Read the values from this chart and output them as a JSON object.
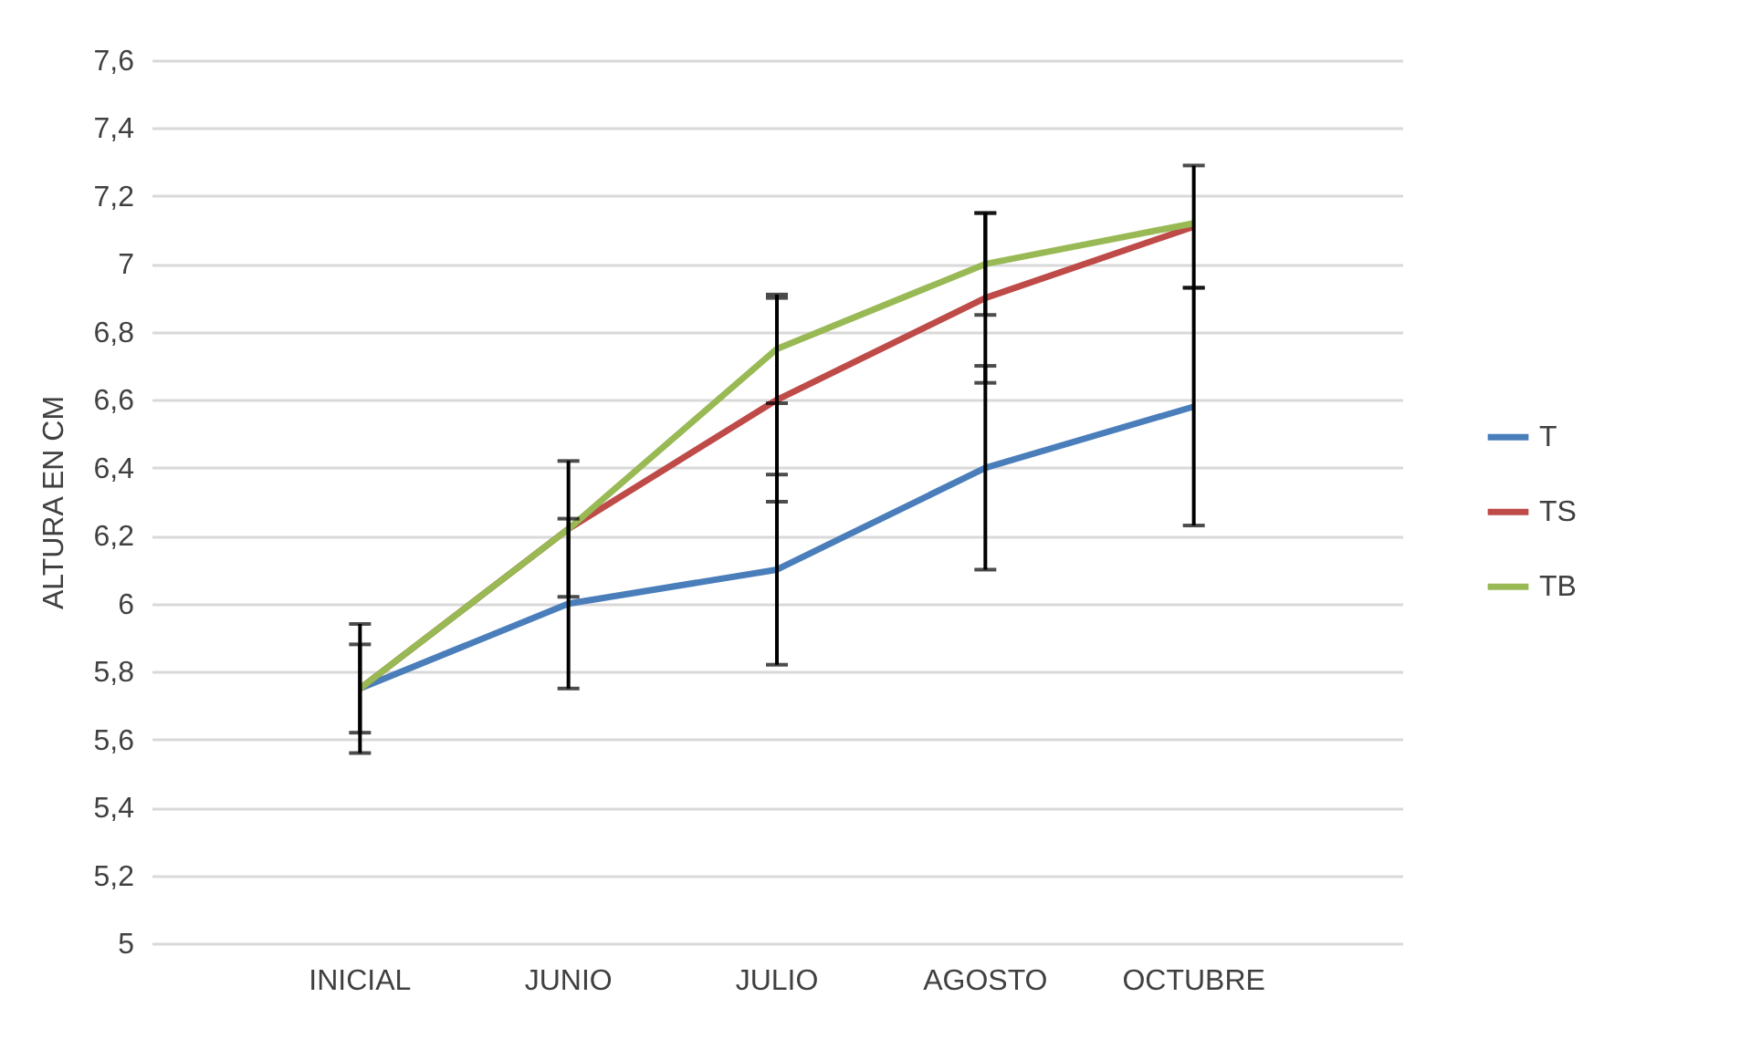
{
  "chart_data": {
    "type": "line",
    "ylabel": "ALTURA EN  CM",
    "categories": [
      "INICIAL",
      "JUNIO",
      "JULIO",
      "AGOSTO",
      "OCTUBRE"
    ],
    "series": [
      {
        "name": "T",
        "color": "#4a7ebb",
        "values": [
          5.75,
          6.0,
          6.1,
          6.4,
          6.58
        ],
        "errors": [
          0.19,
          0.25,
          0.28,
          0.3,
          0.35
        ]
      },
      {
        "name": "TS",
        "color": "#be4b48",
        "values": [
          5.75,
          6.22,
          6.6,
          6.9,
          7.11
        ],
        "errors": [
          0.13,
          0.2,
          0.3,
          0.25,
          0.18
        ]
      },
      {
        "name": "TB",
        "color": "#98b954",
        "values": [
          5.75,
          6.22,
          6.75,
          7.0,
          7.12
        ],
        "errors": [
          null,
          null,
          0.16,
          0.15,
          null
        ]
      }
    ],
    "ylim": [
      5,
      7.6
    ],
    "yticks": [
      5,
      {
        "value": 5.2,
        "label": "5,2"
      },
      {
        "value": 5.4,
        "label": "5,4"
      },
      {
        "value": 5.6,
        "label": "5,6"
      },
      {
        "value": 5.8,
        "label": "5,8"
      },
      6,
      {
        "value": 6.2,
        "label": "6,2"
      },
      {
        "value": 6.4,
        "label": "6,4"
      },
      {
        "value": 6.6,
        "label": "6,6"
      },
      {
        "value": 6.8,
        "label": "6,8"
      },
      7,
      {
        "value": 7.2,
        "label": "7,2"
      },
      {
        "value": 7.4,
        "label": "7,4"
      },
      {
        "value": 7.6,
        "label": "7,6"
      }
    ],
    "grid": "y",
    "legend": "right",
    "marker": "none",
    "line_style": "solid"
  }
}
